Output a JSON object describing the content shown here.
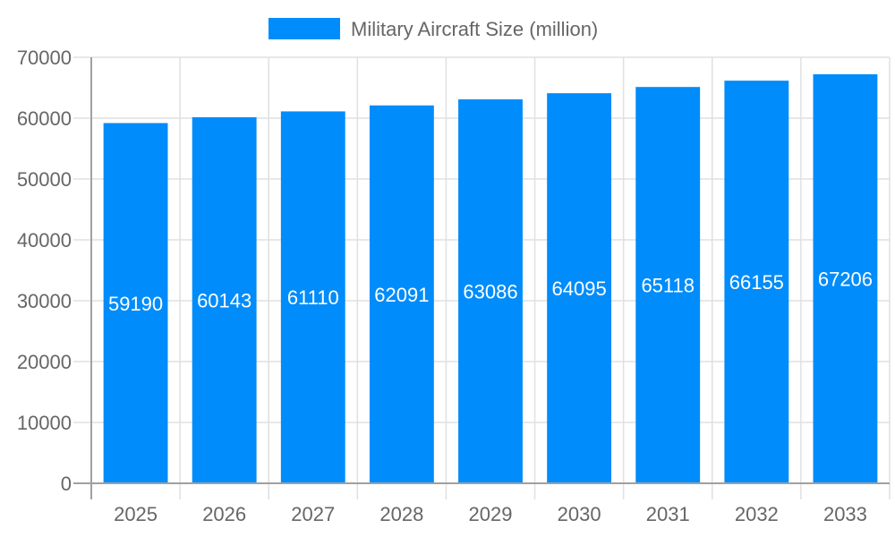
{
  "chart_data": {
    "type": "bar",
    "title": "",
    "xlabel": "",
    "ylabel": "",
    "categories": [
      "2025",
      "2026",
      "2027",
      "2028",
      "2029",
      "2030",
      "2031",
      "2032",
      "2033"
    ],
    "series": [
      {
        "name": "Military Aircraft Size (million)",
        "values": [
          59190,
          60143,
          61110,
          62091,
          63086,
          64095,
          65118,
          66155,
          67206
        ],
        "color": "#008cfa"
      }
    ],
    "ylim": [
      0,
      70000
    ],
    "yticks": [
      0,
      10000,
      20000,
      30000,
      40000,
      50000,
      60000,
      70000
    ],
    "grid": true,
    "legend": "top-center",
    "data_labels": "center-inside"
  }
}
